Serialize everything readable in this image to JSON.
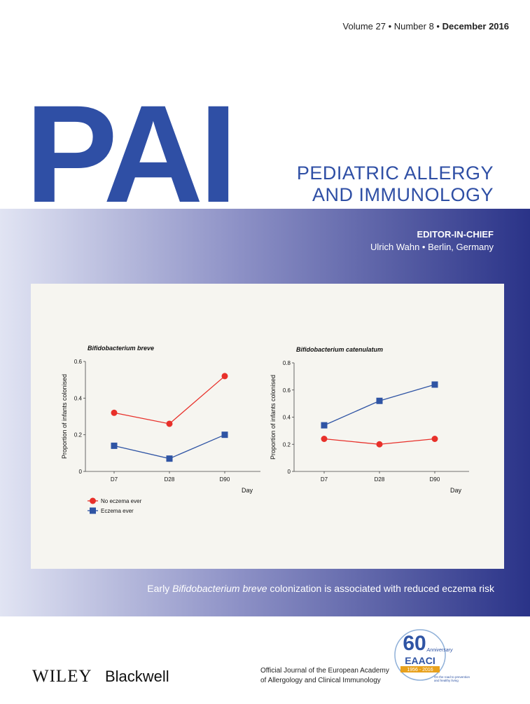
{
  "header": {
    "issue": [
      "Volume 27 • Number 8 • ",
      "December 2016"
    ],
    "acronym": "PAI",
    "title_lines": [
      "PEDIATRIC ALLERGY",
      "AND IMMUNOLOGY"
    ],
    "editor_heading": "EDITOR-IN-CHIEF",
    "editor": "Ulrich Wahn • Berlin, Germany"
  },
  "chart_data": [
    {
      "type": "line",
      "title": "Bifidobacterium breve",
      "y_label": "Proportion of infants colonised",
      "x_label": "Day",
      "categories": [
        "D7",
        "D28",
        "D90"
      ],
      "ylim": [
        0,
        0.6
      ],
      "yticks": [
        0,
        0.2,
        0.4,
        0.6
      ],
      "legend": "bottom-left",
      "series": [
        {
          "name": "No eczema ever",
          "color": "#e8302a",
          "marker": "circle",
          "values": [
            0.32,
            0.26,
            0.52
          ]
        },
        {
          "name": "Eczema ever",
          "color": "#2f54a4",
          "marker": "square",
          "values": [
            0.14,
            0.07,
            0.2
          ]
        }
      ]
    },
    {
      "type": "line",
      "title": "Bifidobacterium catenulatum",
      "y_label": "Proportion of infants colonised",
      "x_label": "Day",
      "categories": [
        "D7",
        "D28",
        "D90"
      ],
      "ylim": [
        0,
        0.8
      ],
      "yticks": [
        0,
        0.2,
        0.4,
        0.6,
        0.8
      ],
      "series": [
        {
          "color": "#e8302a",
          "marker": "circle",
          "values": [
            0.24,
            0.2,
            0.24
          ]
        },
        {
          "color": "#2f54a4",
          "marker": "square",
          "values": [
            0.34,
            0.52,
            0.64
          ]
        }
      ]
    }
  ],
  "caption": [
    "Early ",
    "Bifidobacterium breve",
    " colonization is associated with reduced eczema risk"
  ],
  "footer": {
    "publisher": [
      "WILEY",
      "Blackwell"
    ],
    "journal_note": [
      "Official Journal of the European Academy",
      "of Allergology and Clinical Immunology"
    ],
    "badge": {
      "number": "60",
      "anniversary": "Anniversary",
      "name": "EAACI",
      "years": "1956 - 2016",
      "motto": [
        "On the road to prevention",
        "and healthy living"
      ]
    }
  }
}
